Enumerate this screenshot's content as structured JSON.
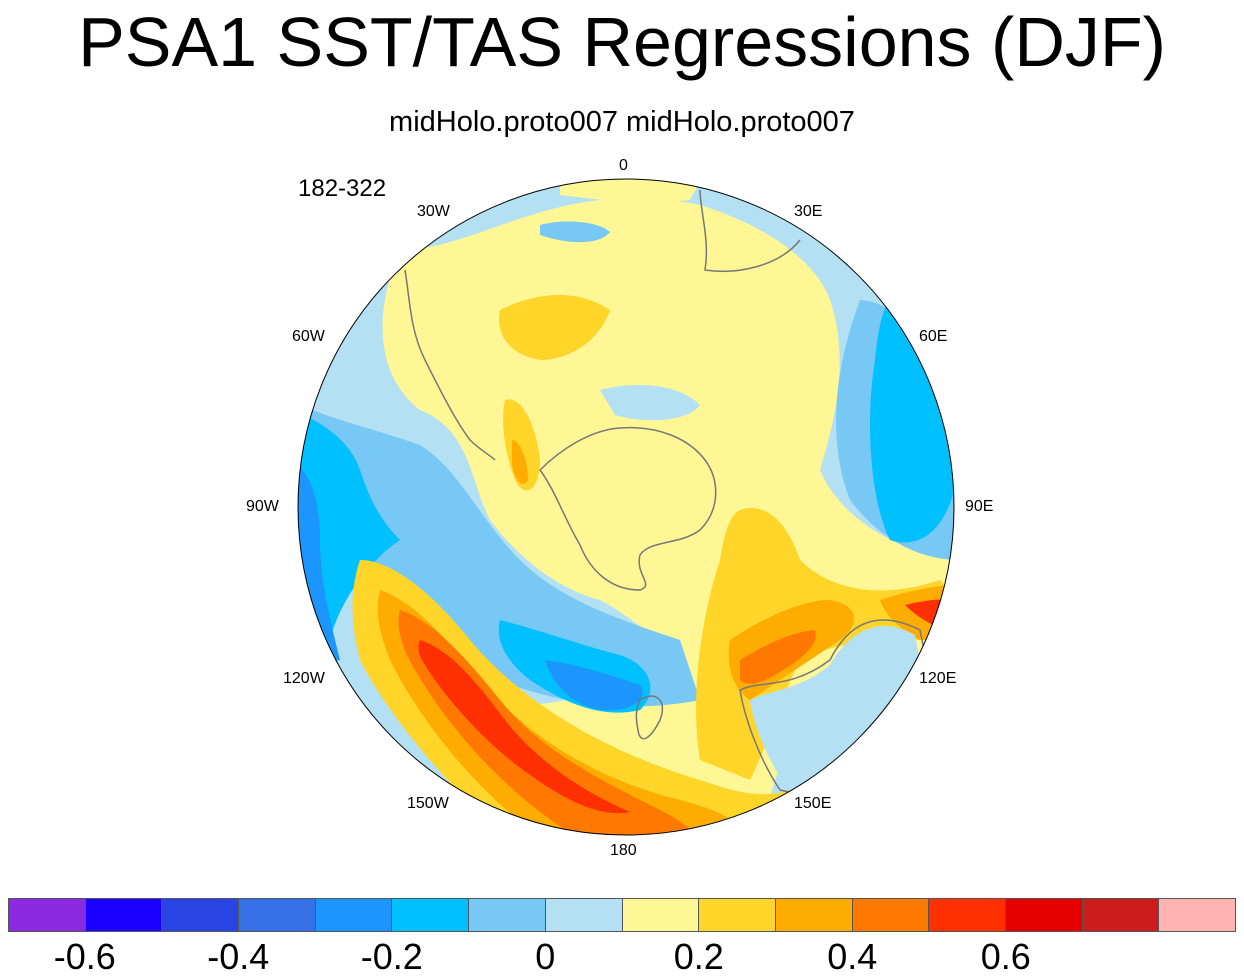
{
  "title": "PSA1 SST/TAS Regressions (DJF)",
  "subtitle": "midHolo.proto007  midHolo.proto007",
  "years": "182-322",
  "lon_labels": {
    "l0": "0",
    "l30e": "30E",
    "l60e": "60E",
    "l90e": "90E",
    "l120e": "120E",
    "l150e": "150E",
    "l180": "180",
    "l150w": "150W",
    "l120w": "120W",
    "l90w": "90W",
    "l60w": "60W",
    "l30w": "30W"
  },
  "colorbar": {
    "colors": [
      "#8a2be2",
      "#1a00ff",
      "#2a45e5",
      "#3570e6",
      "#1b96ff",
      "#00c0ff",
      "#78c8f5",
      "#b4e0f4",
      "#fff796",
      "#ffd52a",
      "#ffac00",
      "#ff7800",
      "#ff3000",
      "#e60000",
      "#cc1c1c",
      "#ffb4b4"
    ],
    "labels": [
      "-0.6",
      "-0.4",
      "-0.2",
      "0",
      "0.2",
      "0.4",
      "0.6"
    ]
  },
  "map": {
    "projection": "south polar stereographic",
    "field_min": -0.6,
    "field_max": 0.6,
    "colors": {
      "pale_blue": "#b4e0f4",
      "light_blue": "#78c8f5",
      "cyan": "#00c0ff",
      "mid_blue": "#1b96ff",
      "blue": "#3570e6",
      "pale_yellow": "#fff796",
      "yellow": "#ffd52a",
      "orange": "#ffac00",
      "dark_orange": "#ff7800",
      "red_orange": "#ff3000",
      "coast": "#777777"
    }
  }
}
